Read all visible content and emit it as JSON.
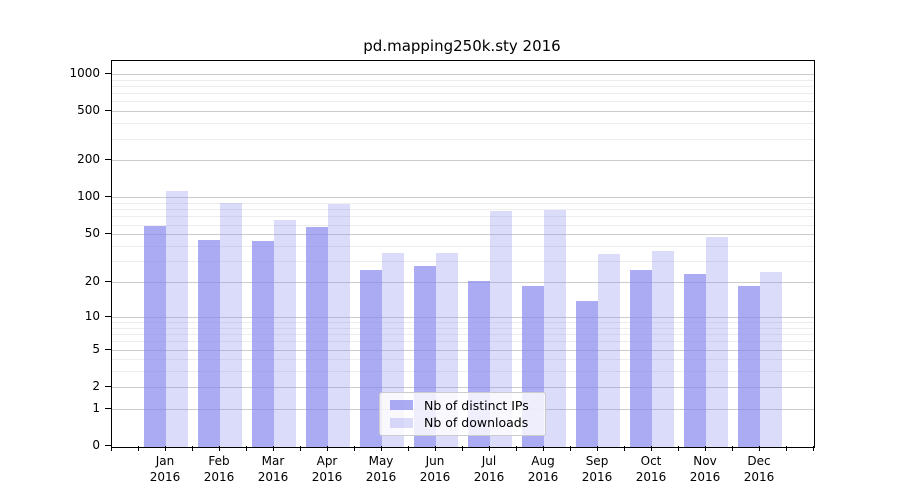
{
  "chart_data": {
    "type": "bar",
    "title": "pd.mapping250k.sty 2016",
    "categories": [
      "Jan",
      "Feb",
      "Mar",
      "Apr",
      "May",
      "Jun",
      "Jul",
      "Aug",
      "Sep",
      "Oct",
      "Nov",
      "Dec"
    ],
    "category_year": "2016",
    "series": [
      {
        "name": "Nb of distinct IPs",
        "color": "rgba(136,136,238,0.7)",
        "values": [
          60,
          46,
          45,
          59,
          26,
          28,
          21,
          19,
          14,
          26,
          24,
          19
        ]
      },
      {
        "name": "Nb of downloads",
        "color": "rgba(136,136,238,0.3)",
        "values": [
          116,
          91,
          67,
          90,
          36,
          36,
          79,
          81,
          35,
          37,
          48,
          25
        ]
      }
    ],
    "y_axis": {
      "scale": "log10(1+x)",
      "ylim": [
        0,
        1000
      ],
      "ticks": [
        0,
        1,
        2,
        5,
        10,
        20,
        50,
        100,
        200,
        500,
        1000
      ],
      "minor_ticks": [
        3,
        4,
        6,
        7,
        8,
        9,
        30,
        40,
        60,
        70,
        80,
        90,
        300,
        400,
        600,
        700,
        800,
        900
      ]
    },
    "legend": {
      "position": "bottom-center"
    },
    "grid": "on",
    "colors": {
      "grid_major": "#cccccc",
      "grid_minor": "#ededed",
      "spine": "#000000",
      "background": "#ffffff",
      "text": "#000000"
    }
  }
}
